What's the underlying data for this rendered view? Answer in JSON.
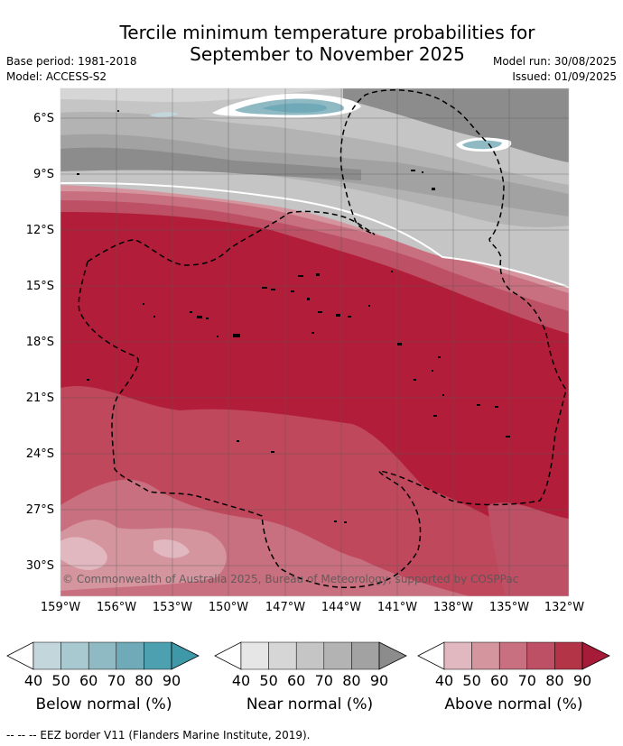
{
  "title_line1": "Tercile minimum temperature probabilities for",
  "title_line2": "September to November 2025",
  "base_period": "Base period: 1981-2018",
  "model": "Model: ACCESS-S2",
  "model_run": "Model run: 30/08/2025",
  "issued": "Issued: 01/09/2025",
  "lat_labels": [
    "6°S",
    "9°S",
    "12°S",
    "15°S",
    "18°S",
    "21°S",
    "24°S",
    "27°S",
    "30°S"
  ],
  "lon_labels": [
    "159°W",
    "156°W",
    "153°W",
    "150°W",
    "147°W",
    "144°W",
    "141°W",
    "138°W",
    "135°W",
    "132°W"
  ],
  "copyright": "© Commonwealth of Australia 2025, Bureau of Meteorology, supported by COSPPac",
  "legends": [
    {
      "title": "Below normal (%)",
      "ticks": [
        "40",
        "50",
        "60",
        "70",
        "80",
        "90"
      ],
      "colors": [
        "#c2d6dc",
        "#a9c9d0",
        "#8fbac4",
        "#70aab8",
        "#4da0b0"
      ]
    },
    {
      "title": "Near normal (%)",
      "ticks": [
        "40",
        "50",
        "60",
        "70",
        "80",
        "90"
      ],
      "colors": [
        "#e6e6e6",
        "#d6d6d6",
        "#c5c5c5",
        "#b3b3b3",
        "#a2a2a2"
      ]
    },
    {
      "title": "Above normal (%)",
      "ticks": [
        "40",
        "50",
        "60",
        "70",
        "80",
        "90"
      ],
      "colors": [
        "#e1b8bf",
        "#d5959f",
        "#c8707f",
        "#bd5064",
        "#b33447"
      ]
    }
  ],
  "footer": "--  --  -- EEZ border V11 (Flanders Marine Institute, 2019)."
}
